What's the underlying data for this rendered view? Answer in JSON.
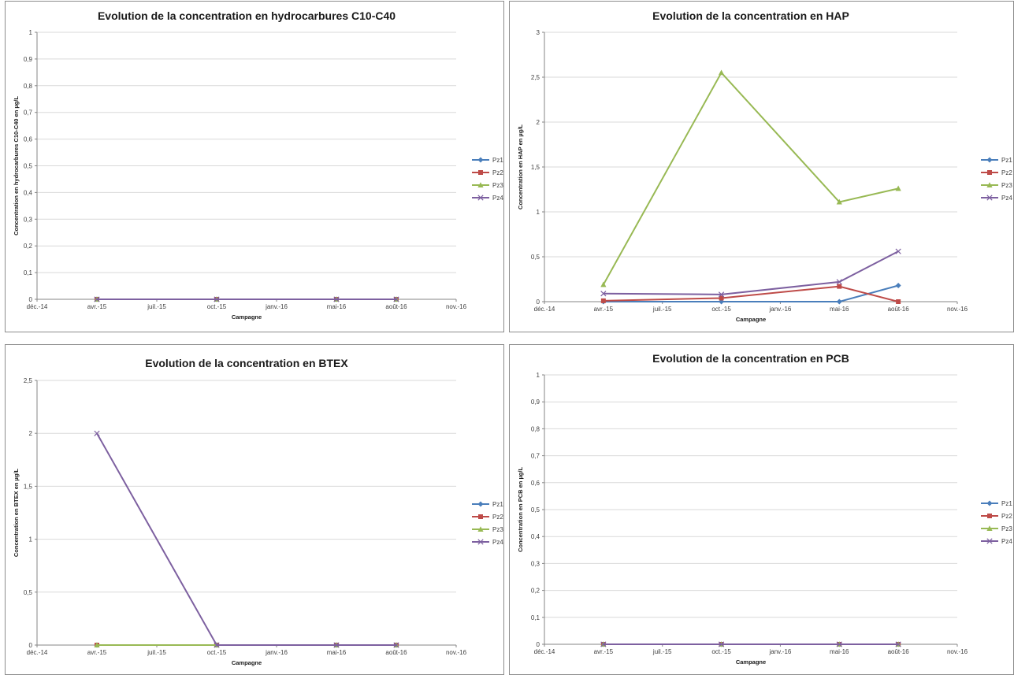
{
  "legend": [
    "Pz1",
    "Pz2",
    "Pz3",
    "Pz4"
  ],
  "colors": {
    "Pz1": "#4A7EBB",
    "Pz2": "#BE4B48",
    "Pz3": "#98B954",
    "Pz4": "#7D60A0",
    "grid": "#d9d9d9",
    "axis": "#868686"
  },
  "chart_data": [
    {
      "type": "line",
      "title": "Evolution de la concentration en hydrocarbures C10-C40",
      "xlabel": "Campagne",
      "ylabel": "Concentration en hydrocarbures C10-C40 en µg/L",
      "xticks": [
        "déc.-14",
        "avr.-15",
        "juil.-15",
        "oct.-15",
        "janv.-16",
        "mai-16",
        "août-16",
        "nov.-16"
      ],
      "yticks": [
        "0",
        "0,1",
        "0,2",
        "0,3",
        "0,4",
        "0,5",
        "0,6",
        "0,7",
        "0,8",
        "0,9",
        "1"
      ],
      "ylim": [
        0,
        1
      ],
      "x": [
        "avr.-15",
        "oct.-15",
        "mai-16",
        "août-16"
      ],
      "series": [
        {
          "name": "Pz1",
          "values": [
            0,
            0,
            0,
            0
          ]
        },
        {
          "name": "Pz2",
          "values": [
            0,
            0,
            0,
            0
          ]
        },
        {
          "name": "Pz3",
          "values": [
            0,
            0,
            0,
            0
          ]
        },
        {
          "name": "Pz4",
          "values": [
            0,
            0,
            0,
            0
          ]
        }
      ],
      "grid": true,
      "legend_position": "right"
    },
    {
      "type": "line",
      "title": "Evolution de la concentration en HAP",
      "xlabel": "Campagne",
      "ylabel": "Concentration en HAP en µg/L",
      "xticks": [
        "déc.-14",
        "avr.-15",
        "juil.-15",
        "oct.-15",
        "janv.-16",
        "mai-16",
        "août-16",
        "nov.-16"
      ],
      "yticks": [
        "0",
        "0,5",
        "1",
        "1,5",
        "2",
        "2,5",
        "3"
      ],
      "ylim": [
        0,
        3
      ],
      "x": [
        "avr.-15",
        "oct.-15",
        "mai-16",
        "août-16"
      ],
      "series": [
        {
          "name": "Pz1",
          "values": [
            0,
            0,
            0,
            0.18
          ]
        },
        {
          "name": "Pz2",
          "values": [
            0.01,
            0.04,
            0.17,
            0
          ]
        },
        {
          "name": "Pz3",
          "values": [
            0.19,
            2.55,
            1.11,
            1.26
          ]
        },
        {
          "name": "Pz4",
          "values": [
            0.09,
            0.08,
            0.22,
            0.56
          ]
        }
      ],
      "grid": true,
      "legend_position": "right"
    },
    {
      "type": "line",
      "title": "Evolution de la concentration en BTEX",
      "xlabel": "Campagne",
      "ylabel": "Concentration en BTEX en µg/L",
      "xticks": [
        "déc.-14",
        "avr.-15",
        "juil.-15",
        "oct.-15",
        "janv.-16",
        "mai-16",
        "août-16",
        "nov.-16"
      ],
      "yticks": [
        "0",
        "0,5",
        "1",
        "1,5",
        "2",
        "2,5"
      ],
      "ylim": [
        0,
        2.5
      ],
      "x": [
        "avr.-15",
        "oct.-15",
        "mai-16",
        "août-16"
      ],
      "series": [
        {
          "name": "Pz1",
          "values": [
            0,
            0,
            0,
            0
          ]
        },
        {
          "name": "Pz2",
          "values": [
            0,
            0,
            0,
            0
          ]
        },
        {
          "name": "Pz3",
          "values": [
            0,
            0,
            0,
            0
          ]
        },
        {
          "name": "Pz4",
          "values": [
            2,
            0,
            0,
            0
          ]
        }
      ],
      "grid": true,
      "legend_position": "right"
    },
    {
      "type": "line",
      "title": "Evolution de la concentration en PCB",
      "xlabel": "Campagne",
      "ylabel": "Concentration en PCB en µg/L",
      "xticks": [
        "déc.-14",
        "avr.-15",
        "juil.-15",
        "oct.-15",
        "janv.-16",
        "mai-16",
        "août-16",
        "nov.-16"
      ],
      "yticks": [
        "0",
        "0,1",
        "0,2",
        "0,3",
        "0,4",
        "0,5",
        "0,6",
        "0,7",
        "0,8",
        "0,9",
        "1"
      ],
      "ylim": [
        0,
        1
      ],
      "x": [
        "avr.-15",
        "oct.-15",
        "mai-16",
        "août-16"
      ],
      "series": [
        {
          "name": "Pz1",
          "values": [
            0,
            0,
            0,
            0
          ]
        },
        {
          "name": "Pz2",
          "values": [
            0,
            0,
            0,
            0
          ]
        },
        {
          "name": "Pz3",
          "values": [
            0,
            0,
            0,
            0
          ]
        },
        {
          "name": "Pz4",
          "values": [
            0,
            0,
            0,
            0
          ]
        }
      ],
      "grid": true,
      "legend_position": "right"
    }
  ]
}
